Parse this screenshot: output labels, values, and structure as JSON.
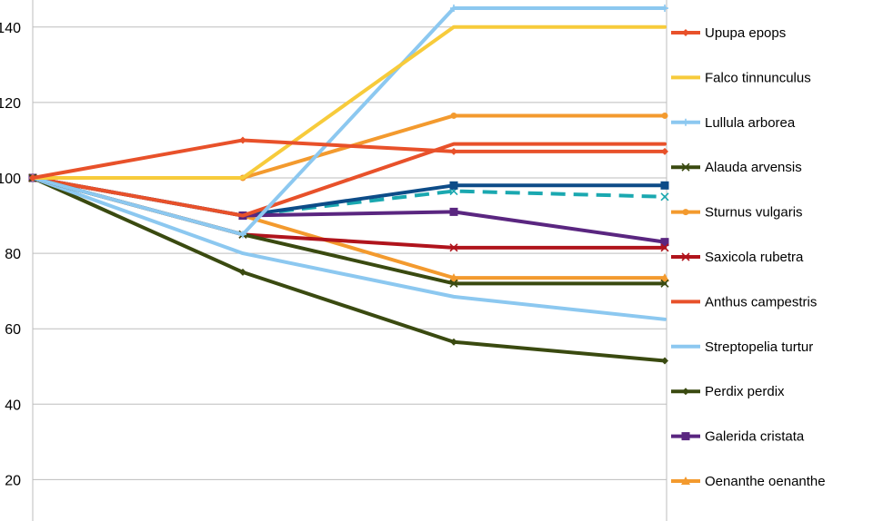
{
  "chart_data": {
    "type": "line",
    "title": "",
    "xlabel": "",
    "ylabel": "",
    "x": [
      1,
      2,
      3,
      4
    ],
    "ylim": [
      10,
      148
    ],
    "y_ticks": [
      20,
      40,
      60,
      80,
      100,
      120,
      140
    ],
    "y_tick_labels": [
      "20",
      "40",
      "60",
      "80",
      "100",
      "120",
      "140"
    ],
    "grid": "horizontal",
    "legend_position": "right",
    "series": [
      {
        "name": "Upupa epops",
        "color": "#E8512A",
        "marker": "diamond",
        "values": [
          100,
          110,
          107,
          107
        ]
      },
      {
        "name": "Falco tinnunculus",
        "color": "#F7CB3B",
        "marker": "none",
        "values": [
          100,
          100,
          140,
          140
        ]
      },
      {
        "name": "Lullula arborea",
        "color": "#8CC8F0",
        "marker": "plus",
        "values": [
          100,
          85,
          145,
          145
        ]
      },
      {
        "name": "Alauda arvensis",
        "color": "#3A4A10",
        "marker": "x",
        "values": [
          100,
          85,
          72,
          72
        ]
      },
      {
        "name": "Sturnus vulgaris",
        "color": "#F39A2E",
        "marker": "circle",
        "values": [
          100,
          100,
          116.5,
          116.5
        ]
      },
      {
        "name": "Saxicola rubetra",
        "color": "#B0141C",
        "marker": "x",
        "values": [
          100,
          85,
          81.5,
          81.5
        ]
      },
      {
        "name": "Anthus campestris",
        "color": "#E8512A",
        "marker": "none",
        "values": [
          100,
          90,
          109,
          109
        ]
      },
      {
        "name": "Streptopelia turtur",
        "color": "#8CC8F0",
        "marker": "none",
        "values": [
          100,
          80,
          68.5,
          62.5
        ]
      },
      {
        "name": "Perdix perdix",
        "color": "#3A4A10",
        "marker": "diamond",
        "values": [
          100,
          75,
          56.5,
          51.5
        ]
      },
      {
        "name": "Galerida cristata",
        "color": "#5A2680",
        "marker": "square",
        "values": [
          100,
          90,
          91,
          83
        ]
      },
      {
        "name": "Oenanthe oenanthe",
        "color": "#F39A2E",
        "marker": "triangle",
        "values": [
          100,
          90,
          73.5,
          73.5
        ]
      },
      {
        "color": "#0D4C88",
        "marker": "square",
        "values": [
          100,
          90,
          98,
          98
        ]
      },
      {
        "color": "#1AA8B0",
        "marker": "x",
        "dashed": true,
        "values": [
          100,
          90,
          96.5,
          95
        ]
      }
    ]
  }
}
